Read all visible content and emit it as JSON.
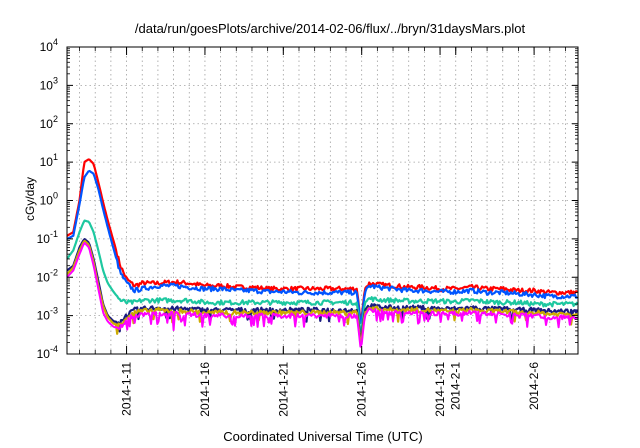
{
  "chart_data": {
    "type": "line",
    "title": "/data/run/goesPlots/archive/2014-02-06/flux/../bryn/31daysMars.plot",
    "xlabel": "Coordinated Universal Time (UTC)",
    "ylabel": "cGy/day",
    "yscale": "log",
    "ylim": [
      0.0001,
      10000
    ],
    "xlim": [
      -3.8,
      28.8
    ],
    "x_unit": "days after 2014-01-11",
    "grid": true,
    "legend": "none",
    "y_ticks": [
      {
        "value": 0.0001,
        "base": "10",
        "exp": "-4"
      },
      {
        "value": 0.001,
        "base": "10",
        "exp": "-3"
      },
      {
        "value": 0.01,
        "base": "10",
        "exp": "-2"
      },
      {
        "value": 0.1,
        "base": "10",
        "exp": "-1"
      },
      {
        "value": 1,
        "base": "10",
        "exp": "0"
      },
      {
        "value": 10,
        "base": "10",
        "exp": "1"
      },
      {
        "value": 100,
        "base": "10",
        "exp": "2"
      },
      {
        "value": 1000,
        "base": "10",
        "exp": "3"
      },
      {
        "value": 10000,
        "base": "10",
        "exp": "4"
      }
    ],
    "x_ticks": [
      {
        "value": 0,
        "label": "2014-1-11"
      },
      {
        "value": 5,
        "label": "2014-1-16"
      },
      {
        "value": 10,
        "label": "2014-1-21"
      },
      {
        "value": 15,
        "label": "2014-1-26"
      },
      {
        "value": 20,
        "label": "2014-1-31"
      },
      {
        "value": 21,
        "label": "2014-2-1"
      },
      {
        "value": 26,
        "label": "2014-2-6"
      }
    ],
    "series": [
      {
        "color": "#ff0000",
        "points": [
          [
            -3.8,
            0.12
          ],
          [
            -3.4,
            0.15
          ],
          [
            -3.0,
            1.0
          ],
          [
            -2.7,
            10
          ],
          [
            -2.4,
            12
          ],
          [
            -2.1,
            9
          ],
          [
            -1.8,
            3
          ],
          [
            -1.5,
            0.9
          ],
          [
            -1.2,
            0.3
          ],
          [
            -0.8,
            0.08
          ],
          [
            -0.4,
            0.02
          ],
          [
            0,
            0.009
          ],
          [
            0.5,
            0.006
          ],
          [
            1,
            0.007
          ],
          [
            2,
            0.007
          ],
          [
            3,
            0.0075
          ],
          [
            4,
            0.007
          ],
          [
            5,
            0.006
          ],
          [
            6,
            0.006
          ],
          [
            7,
            0.0055
          ],
          [
            8,
            0.0055
          ],
          [
            9,
            0.005
          ],
          [
            10,
            0.005
          ],
          [
            11,
            0.005
          ],
          [
            12,
            0.005
          ],
          [
            13,
            0.005
          ],
          [
            14,
            0.005
          ],
          [
            14.7,
            0.005
          ],
          [
            14.95,
            0.0006
          ],
          [
            15.2,
            0.005
          ],
          [
            15.5,
            0.007
          ],
          [
            16,
            0.0065
          ],
          [
            17,
            0.006
          ],
          [
            18,
            0.0055
          ],
          [
            19,
            0.0055
          ],
          [
            20,
            0.005
          ],
          [
            21,
            0.005
          ],
          [
            22,
            0.0055
          ],
          [
            23,
            0.005
          ],
          [
            24,
            0.005
          ],
          [
            25,
            0.0045
          ],
          [
            26,
            0.0045
          ],
          [
            27,
            0.004
          ],
          [
            28,
            0.004
          ],
          [
            28.8,
            0.004
          ]
        ]
      },
      {
        "color": "#0055ff",
        "points": [
          [
            -3.8,
            0.1
          ],
          [
            -3.4,
            0.12
          ],
          [
            -3.0,
            0.8
          ],
          [
            -2.7,
            4
          ],
          [
            -2.4,
            6
          ],
          [
            -2.1,
            5
          ],
          [
            -1.8,
            2
          ],
          [
            -1.5,
            0.6
          ],
          [
            -1.2,
            0.2
          ],
          [
            -0.8,
            0.05
          ],
          [
            -0.4,
            0.013
          ],
          [
            0,
            0.007
          ],
          [
            0.5,
            0.0045
          ],
          [
            1,
            0.005
          ],
          [
            2,
            0.006
          ],
          [
            3,
            0.006
          ],
          [
            4,
            0.0055
          ],
          [
            5,
            0.005
          ],
          [
            6,
            0.005
          ],
          [
            7,
            0.0045
          ],
          [
            8,
            0.0045
          ],
          [
            9,
            0.0042
          ],
          [
            10,
            0.0042
          ],
          [
            11,
            0.004
          ],
          [
            12,
            0.004
          ],
          [
            13,
            0.004
          ],
          [
            14,
            0.004
          ],
          [
            14.7,
            0.004
          ],
          [
            14.95,
            0.0005
          ],
          [
            15.2,
            0.004
          ],
          [
            15.5,
            0.006
          ],
          [
            16,
            0.0055
          ],
          [
            17,
            0.005
          ],
          [
            18,
            0.0045
          ],
          [
            19,
            0.0045
          ],
          [
            20,
            0.0042
          ],
          [
            21,
            0.0042
          ],
          [
            22,
            0.0045
          ],
          [
            23,
            0.004
          ],
          [
            24,
            0.004
          ],
          [
            25,
            0.0037
          ],
          [
            26,
            0.0035
          ],
          [
            27,
            0.0032
          ],
          [
            28,
            0.0032
          ],
          [
            28.8,
            0.0032
          ]
        ]
      },
      {
        "color": "#1ec8a0",
        "points": [
          [
            -3.8,
            0.03
          ],
          [
            -3.4,
            0.05
          ],
          [
            -3.0,
            0.15
          ],
          [
            -2.7,
            0.3
          ],
          [
            -2.4,
            0.28
          ],
          [
            -2.1,
            0.15
          ],
          [
            -1.8,
            0.05
          ],
          [
            -1.5,
            0.015
          ],
          [
            -1.2,
            0.007
          ],
          [
            -0.8,
            0.004
          ],
          [
            -0.4,
            0.0025
          ],
          [
            0,
            0.0022
          ],
          [
            0.5,
            0.0022
          ],
          [
            1,
            0.0025
          ],
          [
            2,
            0.0025
          ],
          [
            3,
            0.0025
          ],
          [
            4,
            0.0025
          ],
          [
            5,
            0.0022
          ],
          [
            6,
            0.0022
          ],
          [
            7,
            0.0022
          ],
          [
            8,
            0.0022
          ],
          [
            9,
            0.0022
          ],
          [
            10,
            0.0022
          ],
          [
            11,
            0.0022
          ],
          [
            12,
            0.0022
          ],
          [
            13,
            0.0022
          ],
          [
            14,
            0.0022
          ],
          [
            14.7,
            0.0022
          ],
          [
            14.95,
            0.0003
          ],
          [
            15.2,
            0.0022
          ],
          [
            15.5,
            0.0028
          ],
          [
            16,
            0.0026
          ],
          [
            17,
            0.0025
          ],
          [
            18,
            0.0024
          ],
          [
            19,
            0.0024
          ],
          [
            20,
            0.0024
          ],
          [
            21,
            0.0023
          ],
          [
            22,
            0.0025
          ],
          [
            23,
            0.0023
          ],
          [
            24,
            0.0022
          ],
          [
            25,
            0.0022
          ],
          [
            26,
            0.002
          ],
          [
            27,
            0.002
          ],
          [
            28,
            0.002
          ],
          [
            28.8,
            0.002
          ]
        ]
      },
      {
        "color": "#1a1a80",
        "points": [
          [
            -3.8,
            0.015
          ],
          [
            -3.4,
            0.02
          ],
          [
            -3.0,
            0.06
          ],
          [
            -2.7,
            0.1
          ],
          [
            -2.4,
            0.08
          ],
          [
            -2.1,
            0.03
          ],
          [
            -1.8,
            0.008
          ],
          [
            -1.5,
            0.002
          ],
          [
            -1.2,
            0.001
          ],
          [
            -0.8,
            0.0007
          ],
          [
            -0.4,
            0.0007
          ],
          [
            0,
            0.001
          ],
          [
            0.5,
            0.0014
          ],
          [
            1,
            0.0015
          ],
          [
            2,
            0.0016
          ],
          [
            3,
            0.0015
          ],
          [
            4,
            0.0015
          ],
          [
            5,
            0.0014
          ],
          [
            6,
            0.0014
          ],
          [
            7,
            0.0014
          ],
          [
            8,
            0.0014
          ],
          [
            9,
            0.0014
          ],
          [
            10,
            0.0014
          ],
          [
            11,
            0.0014
          ],
          [
            12,
            0.0014
          ],
          [
            13,
            0.0014
          ],
          [
            14,
            0.0014
          ],
          [
            14.7,
            0.0014
          ],
          [
            14.95,
            0.0002
          ],
          [
            15.2,
            0.0014
          ],
          [
            15.5,
            0.0018
          ],
          [
            16,
            0.0017
          ],
          [
            17,
            0.0016
          ],
          [
            18,
            0.0016
          ],
          [
            19,
            0.0016
          ],
          [
            20,
            0.0015
          ],
          [
            21,
            0.0015
          ],
          [
            22,
            0.0016
          ],
          [
            23,
            0.0015
          ],
          [
            24,
            0.0015
          ],
          [
            25,
            0.0014
          ],
          [
            26,
            0.0014
          ],
          [
            27,
            0.0013
          ],
          [
            28,
            0.0013
          ],
          [
            28.8,
            0.0013
          ]
        ]
      },
      {
        "color": "#ccaa00",
        "points": [
          [
            -3.8,
            0.012
          ],
          [
            -3.4,
            0.018
          ],
          [
            -3.0,
            0.05
          ],
          [
            -2.7,
            0.09
          ],
          [
            -2.4,
            0.07
          ],
          [
            -2.1,
            0.025
          ],
          [
            -1.8,
            0.006
          ],
          [
            -1.5,
            0.0018
          ],
          [
            -1.2,
            0.0009
          ],
          [
            -0.8,
            0.0006
          ],
          [
            -0.4,
            0.0006
          ],
          [
            0,
            0.0009
          ],
          [
            0.5,
            0.0012
          ],
          [
            1,
            0.0013
          ],
          [
            2,
            0.0014
          ],
          [
            3,
            0.0013
          ],
          [
            4,
            0.0013
          ],
          [
            5,
            0.0012
          ],
          [
            6,
            0.0012
          ],
          [
            7,
            0.0012
          ],
          [
            8,
            0.0012
          ],
          [
            9,
            0.0012
          ],
          [
            10,
            0.0012
          ],
          [
            11,
            0.0012
          ],
          [
            12,
            0.0012
          ],
          [
            13,
            0.0012
          ],
          [
            14,
            0.0012
          ],
          [
            14.7,
            0.0012
          ],
          [
            14.95,
            0.00015
          ],
          [
            15.2,
            0.0012
          ],
          [
            15.5,
            0.0016
          ],
          [
            16,
            0.0015
          ],
          [
            17,
            0.0014
          ],
          [
            18,
            0.0014
          ],
          [
            19,
            0.0014
          ],
          [
            20,
            0.0013
          ],
          [
            21,
            0.0013
          ],
          [
            22,
            0.0014
          ],
          [
            23,
            0.0013
          ],
          [
            24,
            0.0013
          ],
          [
            25,
            0.0012
          ],
          [
            26,
            0.0012
          ],
          [
            27,
            0.0011
          ],
          [
            28,
            0.0011
          ],
          [
            28.8,
            0.0011
          ]
        ]
      },
      {
        "color": "#ff00ff",
        "points": [
          [
            -3.8,
            0.01
          ],
          [
            -3.4,
            0.015
          ],
          [
            -3.0,
            0.04
          ],
          [
            -2.7,
            0.08
          ],
          [
            -2.4,
            0.06
          ],
          [
            -2.1,
            0.02
          ],
          [
            -1.8,
            0.005
          ],
          [
            -1.5,
            0.0012
          ],
          [
            -1.2,
            0.0007
          ],
          [
            -0.8,
            0.0005
          ],
          [
            -0.4,
            0.0005
          ],
          [
            0,
            0.0008
          ],
          [
            0.5,
            0.001
          ],
          [
            1,
            0.0011
          ],
          [
            2,
            0.0011
          ],
          [
            3,
            0.0011
          ],
          [
            4,
            0.0011
          ],
          [
            5,
            0.001
          ],
          [
            6,
            0.001
          ],
          [
            7,
            0.001
          ],
          [
            8,
            0.001
          ],
          [
            9,
            0.001
          ],
          [
            10,
            0.001
          ],
          [
            11,
            0.001
          ],
          [
            12,
            0.001
          ],
          [
            13,
            0.001
          ],
          [
            14,
            0.001
          ],
          [
            14.7,
            0.001
          ],
          [
            14.95,
            0.00012
          ],
          [
            15.2,
            0.001
          ],
          [
            15.5,
            0.0014
          ],
          [
            16,
            0.0013
          ],
          [
            17,
            0.0012
          ],
          [
            18,
            0.0012
          ],
          [
            19,
            0.0012
          ],
          [
            20,
            0.0011
          ],
          [
            21,
            0.0011
          ],
          [
            22,
            0.0012
          ],
          [
            23,
            0.0011
          ],
          [
            24,
            0.0011
          ],
          [
            25,
            0.001
          ],
          [
            26,
            0.001
          ],
          [
            27,
            0.0009
          ],
          [
            28,
            0.0009
          ],
          [
            28.8,
            0.0009
          ]
        ]
      }
    ]
  }
}
